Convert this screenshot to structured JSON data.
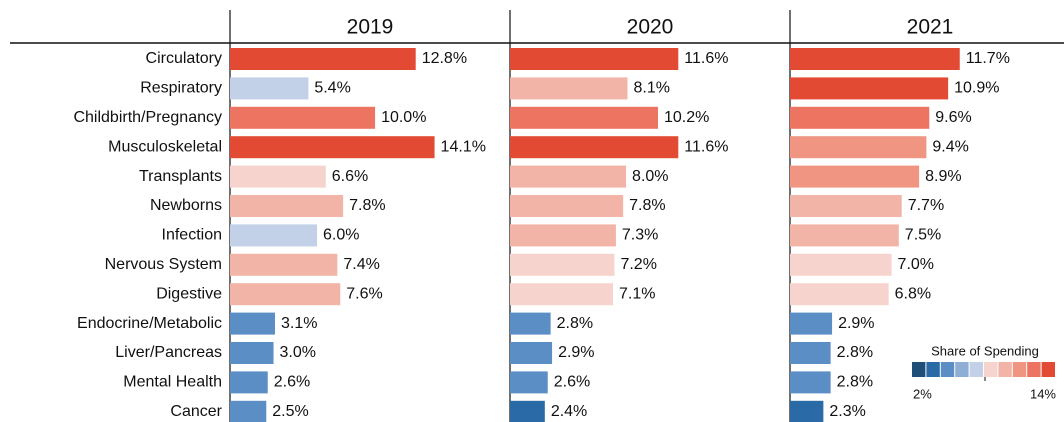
{
  "chart_data": {
    "type": "bar",
    "categories": [
      "Circulatory",
      "Respiratory",
      "Childbirth/Pregnancy",
      "Musculoskeletal",
      "Transplants",
      "Newborns",
      "Infection",
      "Nervous System",
      "Digestive",
      "Endocrine/Metabolic",
      "Liver/Pancreas",
      "Mental Health",
      "Cancer"
    ],
    "xlim": [
      0,
      19.3
    ],
    "series": [
      {
        "name": "2019",
        "values": [
          12.8,
          5.4,
          10.0,
          14.1,
          6.6,
          7.8,
          6.0,
          7.4,
          7.6,
          3.1,
          3.0,
          2.6,
          2.5
        ],
        "value_labels": [
          "12.8%",
          "5.4%",
          "10.0%",
          "14.1%",
          "6.6%",
          "7.8%",
          "6.0%",
          "7.4%",
          "7.6%",
          "3.1%",
          "3.0%",
          "2.6%",
          "2.5%"
        ],
        "colors": [
          "#e34a33",
          "#c2d0e8",
          "#ec7461",
          "#e34a33",
          "#f6d3cc",
          "#f2b4a6",
          "#c2d0e8",
          "#f2b4a6",
          "#f2b4a6",
          "#5b8ec4",
          "#5b8ec4",
          "#5b8ec4",
          "#5b8ec4"
        ]
      },
      {
        "name": "2020",
        "values": [
          11.6,
          8.1,
          10.2,
          11.6,
          8.0,
          7.8,
          7.3,
          7.2,
          7.1,
          2.8,
          2.9,
          2.6,
          2.4
        ],
        "value_labels": [
          "11.6%",
          "8.1%",
          "10.2%",
          "11.6%",
          "8.0%",
          "7.8%",
          "7.3%",
          "7.2%",
          "7.1%",
          "2.8%",
          "2.9%",
          "2.6%",
          "2.4%"
        ],
        "colors": [
          "#e34a33",
          "#f2b4a6",
          "#ec7461",
          "#e34a33",
          "#f2b4a6",
          "#f2b4a6",
          "#f2b4a6",
          "#f6d3cc",
          "#f6d3cc",
          "#5b8ec4",
          "#5b8ec4",
          "#5b8ec4",
          "#2a6aa6"
        ]
      },
      {
        "name": "2021",
        "values": [
          11.7,
          10.9,
          9.6,
          9.4,
          8.9,
          7.7,
          7.5,
          7.0,
          6.8,
          2.9,
          2.8,
          2.8,
          2.3
        ],
        "value_labels": [
          "11.7%",
          "10.9%",
          "9.6%",
          "9.4%",
          "8.9%",
          "7.7%",
          "7.5%",
          "7.0%",
          "6.8%",
          "2.9%",
          "2.8%",
          "2.8%",
          "2.3%"
        ],
        "colors": [
          "#e34a33",
          "#e34a33",
          "#ec7461",
          "#ef9582",
          "#ef9582",
          "#f2b4a6",
          "#f2b4a6",
          "#f6d3cc",
          "#f6d3cc",
          "#5b8ec4",
          "#5b8ec4",
          "#5b8ec4",
          "#2a6aa6"
        ]
      }
    ],
    "legend": {
      "title": "Share of Spending",
      "min_label": "2%",
      "max_label": "14%",
      "colors": [
        "#1f4e79",
        "#2a6aa6",
        "#5b8ec4",
        "#8eaed6",
        "#c2d0e8",
        "#f6d3cc",
        "#f2b4a6",
        "#ef9582",
        "#ec7461",
        "#e34a33"
      ]
    }
  }
}
